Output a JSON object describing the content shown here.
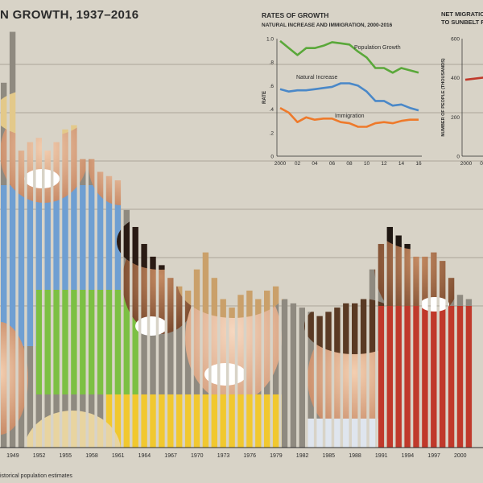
{
  "main": {
    "title": "N GROWTH, 1937–2016",
    "footnote": "istorical population estimates"
  },
  "chart_data": [
    {
      "type": "bar",
      "title": "N GROWTH, 1937–2016",
      "photo_fill": "photograph of smiling children visible through the bars",
      "x_tick_labels": [
        "1949",
        "1952",
        "1955",
        "1958",
        "1961",
        "1964",
        "1967",
        "1970",
        "1973",
        "1976",
        "1979",
        "1982",
        "1985",
        "1988",
        "1991",
        "1994",
        "1997",
        "2000"
      ],
      "x": [
        1948,
        1949,
        1950,
        1951,
        1952,
        1953,
        1954,
        1955,
        1956,
        1957,
        1958,
        1959,
        1960,
        1961,
        1962,
        1963,
        1964,
        1965,
        1966,
        1967,
        1968,
        1969,
        1970,
        1971,
        1972,
        1973,
        1974,
        1975,
        1976,
        1977,
        1978,
        1979,
        1980,
        1981,
        1982,
        1983,
        1984,
        1985,
        1986,
        1987,
        1988,
        1989,
        1990,
        1991,
        1992,
        1993,
        1994,
        1995,
        1996,
        1997,
        1998,
        1999,
        2000,
        2001
      ],
      "values": [
        86,
        98,
        70,
        72,
        73,
        70,
        72,
        75,
        76,
        68,
        68,
        65,
        64,
        63,
        56,
        52,
        48,
        45,
        43,
        40,
        38,
        37,
        42,
        46,
        40,
        35,
        33,
        36,
        37,
        35,
        37,
        38,
        35,
        34,
        33,
        32,
        31,
        32,
        33,
        34,
        34,
        35,
        42,
        48,
        52,
        50,
        48,
        45,
        45,
        46,
        44,
        40,
        36,
        35
      ],
      "gridlines": true
    },
    {
      "type": "line",
      "title": "RATES OF GROWTH",
      "subtitle": "NATURAL INCREASE AND IMMIGRATION, 2000-2016",
      "ylabel": "RATE",
      "y_tick_labels": [
        "1.0",
        ".8",
        ".6",
        ".4",
        ".2",
        "0"
      ],
      "x_tick_labels": [
        "2000",
        "02",
        "04",
        "06",
        "08",
        "10",
        "12",
        "14",
        "16"
      ],
      "x": [
        2000,
        2001,
        2002,
        2003,
        2004,
        2005,
        2006,
        2007,
        2008,
        2009,
        2010,
        2011,
        2012,
        2013,
        2014,
        2015,
        2016
      ],
      "xlim": [
        2000,
        2016
      ],
      "ylim": [
        0,
        1.0
      ],
      "series": [
        {
          "name": "Population Growth",
          "color": "#5aa83a",
          "values": [
            0.98,
            0.92,
            0.86,
            0.92,
            0.92,
            0.94,
            0.97,
            0.96,
            0.95,
            0.89,
            0.84,
            0.75,
            0.75,
            0.71,
            0.75,
            0.73,
            0.71
          ]
        },
        {
          "name": "Natural Increase",
          "color": "#4a88c8",
          "values": [
            0.57,
            0.55,
            0.56,
            0.56,
            0.57,
            0.58,
            0.59,
            0.62,
            0.62,
            0.6,
            0.55,
            0.47,
            0.47,
            0.43,
            0.44,
            0.41,
            0.39
          ]
        },
        {
          "name": "Immigration",
          "color": "#ee7a2b",
          "values": [
            0.41,
            0.37,
            0.29,
            0.33,
            0.31,
            0.32,
            0.32,
            0.29,
            0.28,
            0.25,
            0.25,
            0.28,
            0.29,
            0.28,
            0.3,
            0.31,
            0.31
          ]
        }
      ],
      "gridlines": false
    },
    {
      "type": "line",
      "title": "NET MIGRATIO",
      "subtitle": "TO SUNBELT R",
      "ylabel": "NUMBER OF PEOPLE (THOUSANDS)",
      "y_tick_labels": [
        "600",
        "400",
        "200",
        "0"
      ],
      "x_tick_labels": [
        "2000",
        "0"
      ],
      "x": [
        2000,
        2001,
        2002
      ],
      "xlim": [
        2000,
        2002
      ],
      "ylim": [
        0,
        600
      ],
      "series": [
        {
          "color": "#c0392b",
          "values": [
            390,
            405,
            385
          ]
        }
      ]
    }
  ]
}
